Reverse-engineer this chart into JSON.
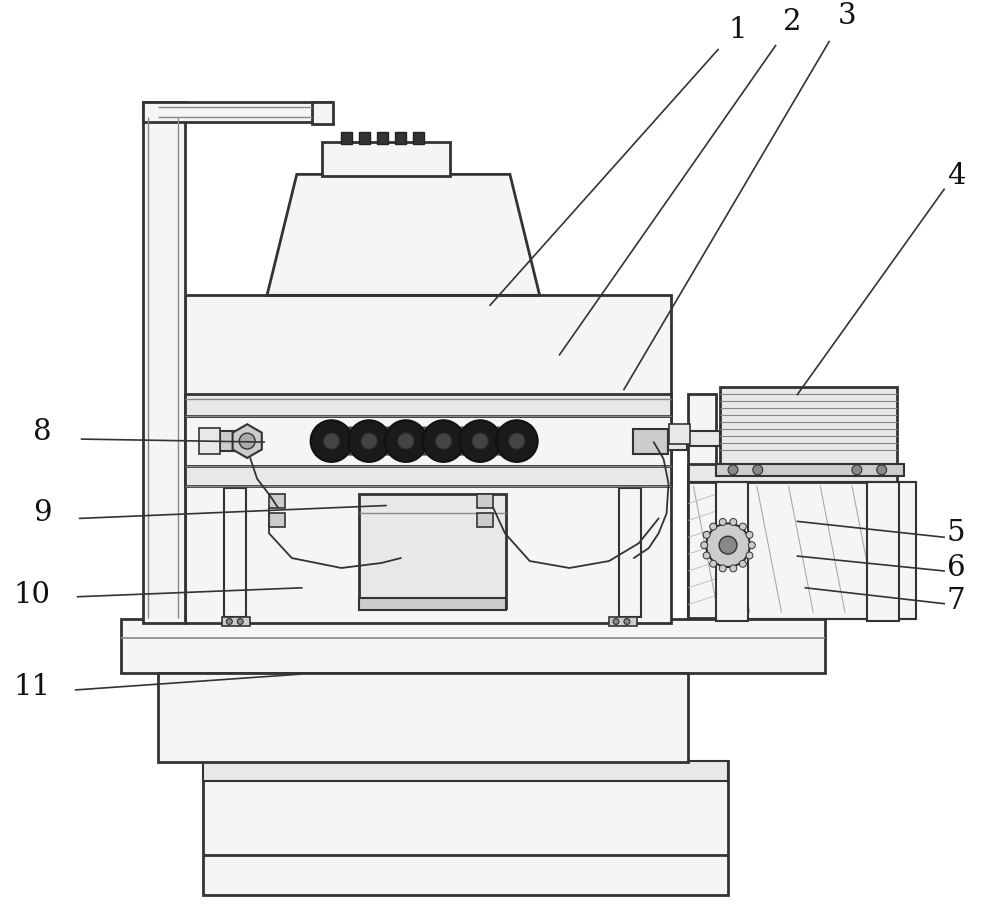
{
  "bg_color": "#ffffff",
  "lc": "#333333",
  "fc_white": "#ffffff",
  "fc_light": "#f5f5f5",
  "fc_mid": "#e8e8e8",
  "fc_dark": "#cccccc",
  "fc_blade": "#222222",
  "annotations": [
    [
      "1",
      740,
      22,
      720,
      42,
      490,
      300
    ],
    [
      "2",
      795,
      14,
      778,
      38,
      560,
      350
    ],
    [
      "3",
      850,
      8,
      832,
      34,
      625,
      385
    ],
    [
      "4",
      960,
      170,
      948,
      183,
      800,
      390
    ],
    [
      "5",
      960,
      530,
      948,
      534,
      800,
      518
    ],
    [
      "6",
      960,
      565,
      948,
      568,
      800,
      553
    ],
    [
      "7",
      960,
      598,
      948,
      601,
      808,
      585
    ],
    [
      "8",
      38,
      428,
      78,
      435,
      262,
      438
    ],
    [
      "9",
      38,
      510,
      76,
      515,
      385,
      502
    ],
    [
      "10",
      28,
      592,
      74,
      594,
      300,
      585
    ],
    [
      "11",
      28,
      685,
      72,
      688,
      300,
      672
    ]
  ]
}
